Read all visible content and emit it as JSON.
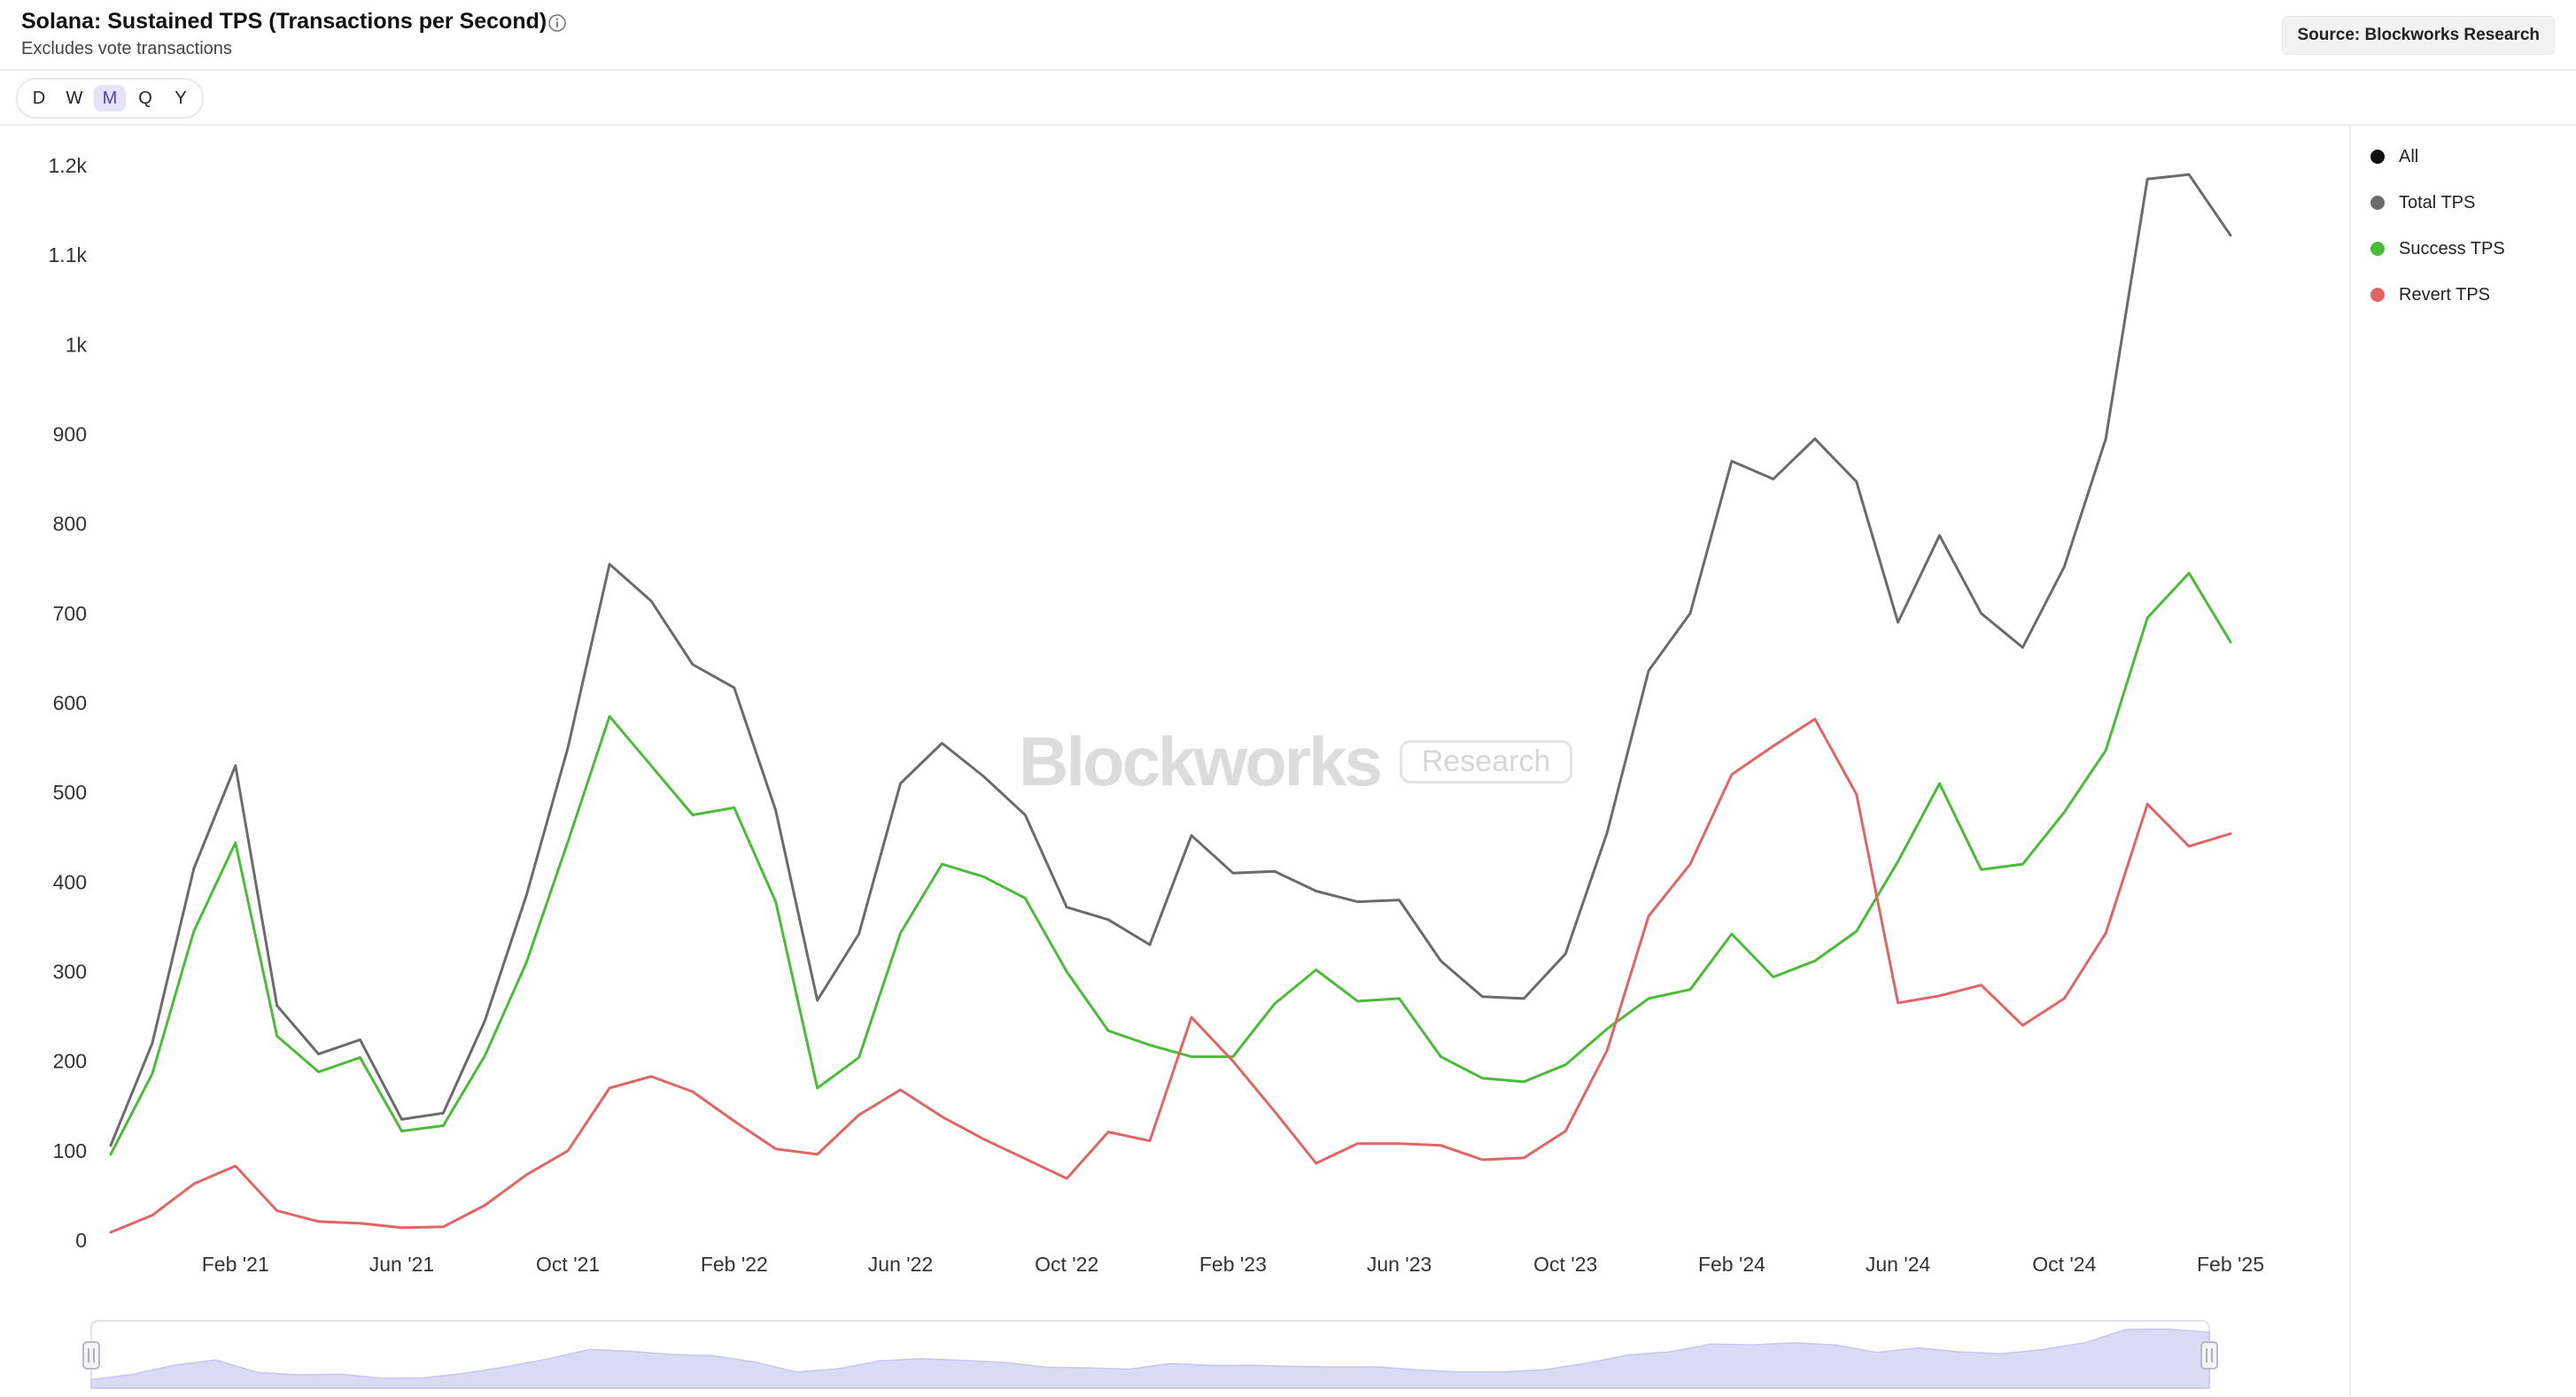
{
  "header": {
    "title": "Solana: Sustained TPS (Transactions per Second)",
    "subtitle": "Excludes vote transactions",
    "source": "Source: Blockworks Research"
  },
  "timeframes": [
    {
      "label": "D",
      "active": false
    },
    {
      "label": "W",
      "active": false
    },
    {
      "label": "M",
      "active": true
    },
    {
      "label": "Q",
      "active": false
    },
    {
      "label": "Y",
      "active": false
    }
  ],
  "watermark": {
    "brand": "Blockworks",
    "badge": "Research"
  },
  "legend": [
    {
      "label": "All",
      "color": "#111111"
    },
    {
      "label": "Total TPS",
      "color": "#6b6b6b"
    },
    {
      "label": "Success TPS",
      "color": "#4cbb3a"
    },
    {
      "label": "Revert TPS",
      "color": "#e06666"
    }
  ],
  "chart_data": {
    "type": "line",
    "x": [
      "Nov '20",
      "Dec '20",
      "Jan '21",
      "Feb '21",
      "Mar '21",
      "Apr '21",
      "May '21",
      "Jun '21",
      "Jul '21",
      "Aug '21",
      "Sep '21",
      "Oct '21",
      "Nov '21",
      "Dec '21",
      "Jan '22",
      "Feb '22",
      "Mar '22",
      "Apr '22",
      "May '22",
      "Jun '22",
      "Jul '22",
      "Aug '22",
      "Sep '22",
      "Oct '22",
      "Nov '22",
      "Dec '22",
      "Jan '23",
      "Feb '23",
      "Mar '23",
      "Apr '23",
      "May '23",
      "Jun '23",
      "Jul '23",
      "Aug '23",
      "Sep '23",
      "Oct '23",
      "Nov '23",
      "Dec '23",
      "Jan '24",
      "Feb '24",
      "Mar '24",
      "Apr '24",
      "May '24",
      "Jun '24",
      "Jul '24",
      "Aug '24",
      "Sep '24",
      "Oct '24",
      "Nov '24",
      "Dec '24",
      "Jan '25",
      "Feb '25"
    ],
    "x_tick_labels": [
      "Feb '21",
      "Jun '21",
      "Oct '21",
      "Feb '22",
      "Jun '22",
      "Oct '22",
      "Feb '23",
      "Jun '23",
      "Oct '23",
      "Feb '24",
      "Jun '24",
      "Oct '24",
      "Feb '25"
    ],
    "y_ticks": [
      0,
      100,
      200,
      300,
      400,
      500,
      600,
      700,
      800,
      900,
      1000,
      1100,
      1200
    ],
    "y_tick_labels": [
      "0",
      "100",
      "200",
      "300",
      "400",
      "500",
      "600",
      "700",
      "800",
      "900",
      "1k",
      "1.1k",
      "1.2k"
    ],
    "ylim": [
      0,
      1200
    ],
    "series": [
      {
        "name": "Total TPS",
        "color": "#6b6b6b",
        "values": [
          106,
          220,
          415,
          530,
          262,
          208,
          224,
          135,
          142,
          245,
          385,
          550,
          755,
          714,
          643,
          617,
          480,
          268,
          342,
          510,
          555,
          518,
          475,
          372,
          358,
          330,
          452,
          410,
          412,
          390,
          378,
          380,
          312,
          272,
          270,
          320,
          455,
          636,
          700,
          870,
          850,
          895,
          847,
          690,
          787,
          700,
          662,
          752,
          895,
          1185,
          1190,
          1122
        ]
      },
      {
        "name": "Success TPS",
        "color": "#4cbb3a",
        "values": [
          96,
          186,
          345,
          444,
          228,
          188,
          204,
          122,
          128,
          206,
          310,
          445,
          585,
          530,
          475,
          483,
          378,
          170,
          204,
          343,
          420,
          406,
          382,
          300,
          234,
          218,
          205,
          205,
          264,
          302,
          267,
          270,
          205,
          181,
          177,
          196,
          236,
          270,
          280,
          342,
          294,
          312,
          345,
          423,
          510,
          414,
          420,
          478,
          547,
          695,
          745,
          668
        ]
      },
      {
        "name": "Revert TPS",
        "color": "#e06666",
        "values": [
          9,
          28,
          63,
          83,
          33,
          21,
          19,
          14,
          15,
          39,
          73,
          100,
          170,
          183,
          166,
          133,
          102,
          96,
          140,
          168,
          138,
          113,
          91,
          69,
          121,
          111,
          249,
          200,
          144,
          86,
          108,
          108,
          106,
          90,
          92,
          122,
          212,
          362,
          420,
          520,
          552,
          582,
          498,
          265,
          273,
          285,
          240,
          270,
          343,
          487,
          440,
          454
        ]
      }
    ]
  }
}
